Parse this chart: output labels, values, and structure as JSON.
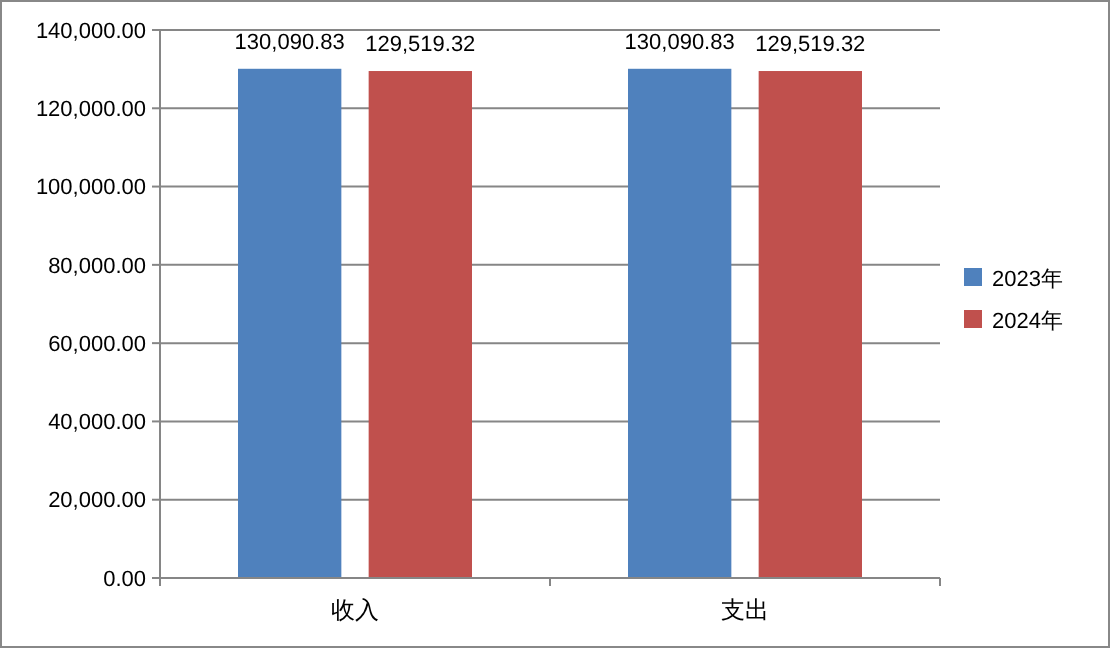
{
  "chart_data": {
    "type": "bar",
    "categories": [
      "收入",
      "支出"
    ],
    "series": [
      {
        "name": "2023年",
        "color": "#4f81bd",
        "values": [
          130090.83,
          130090.83
        ],
        "value_labels": [
          "130,090.83",
          "130,090.83"
        ]
      },
      {
        "name": "2024年",
        "color": "#c0504d",
        "values": [
          129519.32,
          129519.32
        ],
        "value_labels": [
          "129,519.32",
          "129,519.32"
        ]
      }
    ],
    "ylim": [
      0,
      140000
    ],
    "yticks": [
      {
        "value": 0,
        "label": "0.00"
      },
      {
        "value": 20000,
        "label": "20,000.00"
      },
      {
        "value": 40000,
        "label": "40,000.00"
      },
      {
        "value": 60000,
        "label": "60,000.00"
      },
      {
        "value": 80000,
        "label": "80,000.00"
      },
      {
        "value": 100000,
        "label": "100,000.00"
      },
      {
        "value": 120000,
        "label": "120,000.00"
      },
      {
        "value": 140000,
        "label": "140,000.00"
      }
    ],
    "grid": "y",
    "legend": "right"
  }
}
